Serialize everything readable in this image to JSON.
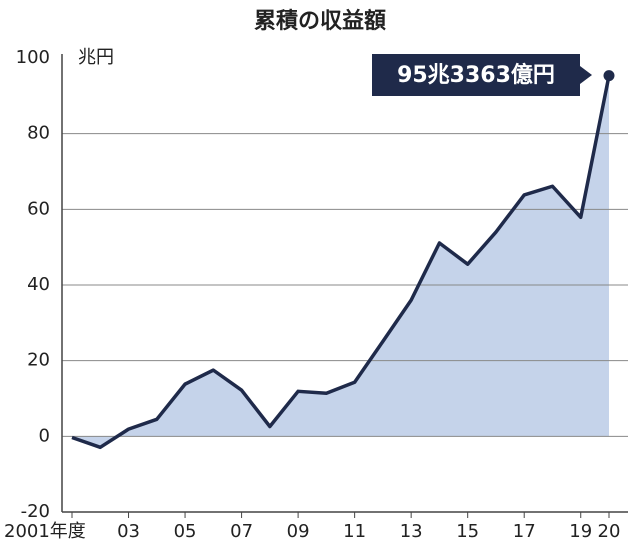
{
  "chart_data": {
    "type": "area",
    "title": "累積の収益額",
    "y_unit": "兆円",
    "annotation": "95兆3363億円",
    "categories": [
      "2001年度",
      null,
      "03",
      null,
      "05",
      null,
      "07",
      null,
      "09",
      null,
      "11",
      null,
      "13",
      null,
      "15",
      null,
      "17",
      null,
      "19",
      "20"
    ],
    "values": [
      -0.3,
      -2.9,
      1.9,
      4.5,
      13.8,
      17.5,
      12.2,
      2.6,
      11.9,
      11.4,
      14.3,
      25.1,
      36.0,
      51.1,
      45.5,
      54.0,
      63.8,
      66.1,
      57.9,
      95.3363
    ],
    "color": "#1f2a4a",
    "fill_color": "#c5d3ea",
    "annotation_color": "#1f2a4a",
    "ylim": [
      -20,
      100
    ],
    "yticks": [
      -20,
      0,
      20,
      40,
      60,
      80,
      100
    ],
    "grid": true
  }
}
